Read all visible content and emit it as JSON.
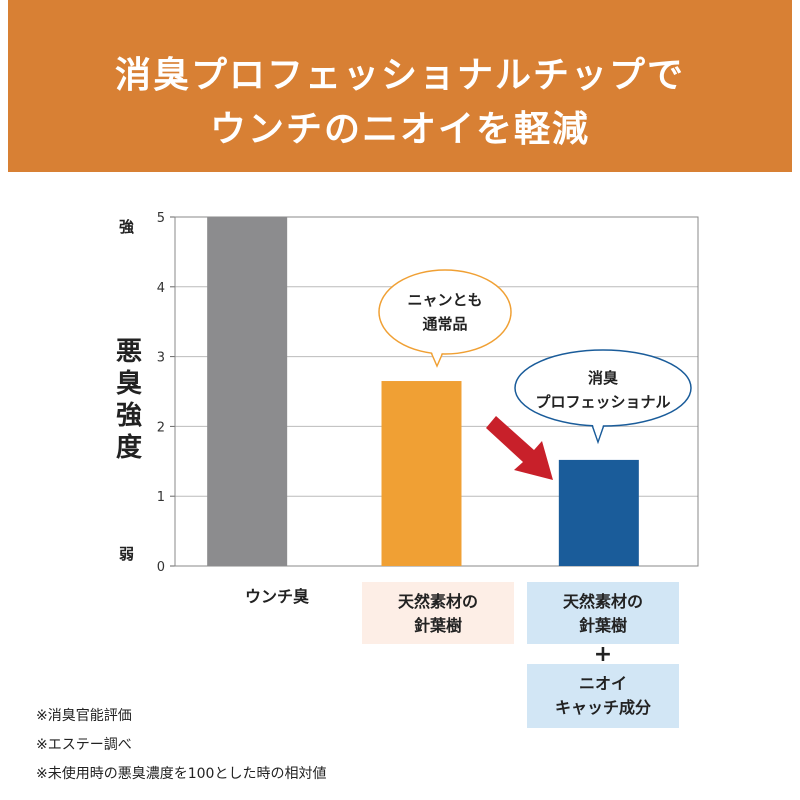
{
  "header": {
    "title_line1": "消臭プロフェッショナルチップで",
    "title_line2": "ウンチのニオイを軽減"
  },
  "chart_data": {
    "type": "bar",
    "ylabel": "悪臭強度",
    "ylim": [
      0,
      5
    ],
    "yticks": [
      "0",
      "1",
      "2",
      "3",
      "4",
      "5"
    ],
    "y_top_label": "強",
    "y_bottom_label": "弱",
    "categories": [
      "ウンチ臭",
      "天然素材の針葉樹",
      "天然素材の針葉樹 + ニオイキャッチ成分"
    ],
    "values": [
      5,
      2.65,
      1.52
    ],
    "colors": [
      "#8c8c8e",
      "#f0a034",
      "#1a5c9a"
    ],
    "grid": true,
    "category_labels": {
      "plain": "ウンチ臭",
      "orange_line1": "天然素材の",
      "orange_line2": "針葉樹",
      "blue_line1": "天然素材の",
      "blue_line2": "針葉樹",
      "plus": "+",
      "blue_extra_line1": "ニオイ",
      "blue_extra_line2": "キャッチ成分"
    },
    "annotations": {
      "bubble_orange_line1": "ニャンとも",
      "bubble_orange_line2": "通常品",
      "bubble_blue_line1": "消臭",
      "bubble_blue_line2": "プロフェッショナル",
      "arrow_color": "#c8202a",
      "bubble_orange_border": "#f0a034",
      "bubble_blue_border": "#1a5c9a"
    }
  },
  "notes": [
    "※消臭官能評価",
    "※エステー調べ",
    "※未使用時の悪臭濃度を100とした時の相対値"
  ]
}
